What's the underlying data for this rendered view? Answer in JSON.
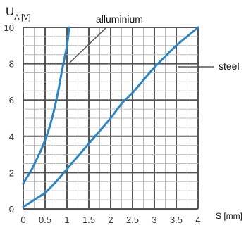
{
  "chart_data": {
    "type": "line",
    "ylabel_main": "U",
    "ylabel_sub": "A [V]",
    "xlabel": "S [mm]",
    "xlim": [
      0,
      4
    ],
    "ylim": [
      0,
      10
    ],
    "x_ticks": [
      "0",
      "0.5",
      "1",
      "1.5",
      "2",
      "2.5",
      "3",
      "3.5",
      "4"
    ],
    "y_ticks": [
      "0",
      "2",
      "4",
      "6",
      "8",
      "10"
    ],
    "grid": true,
    "series": [
      {
        "name": "alluminium",
        "color": "#2a86c8",
        "x": [
          0,
          0.1,
          0.2,
          0.3,
          0.4,
          0.5,
          0.6,
          0.7,
          0.8,
          0.9,
          1.0,
          1.05
        ],
        "y": [
          1.4,
          1.8,
          2.2,
          2.7,
          3.2,
          3.8,
          4.5,
          5.4,
          6.5,
          7.8,
          9.0,
          10.0
        ]
      },
      {
        "name": "steel",
        "color": "#2a86c8",
        "x": [
          0,
          0.25,
          0.5,
          0.75,
          1.0,
          1.25,
          1.5,
          1.75,
          2.0,
          2.25,
          2.5,
          2.75,
          3.0,
          3.25,
          3.5,
          3.75,
          4.0
        ],
        "y": [
          0.1,
          0.5,
          0.9,
          1.5,
          2.2,
          2.9,
          3.6,
          4.3,
          5.0,
          5.8,
          6.4,
          7.1,
          7.8,
          8.4,
          9.0,
          9.5,
          10.0
        ]
      }
    ]
  }
}
